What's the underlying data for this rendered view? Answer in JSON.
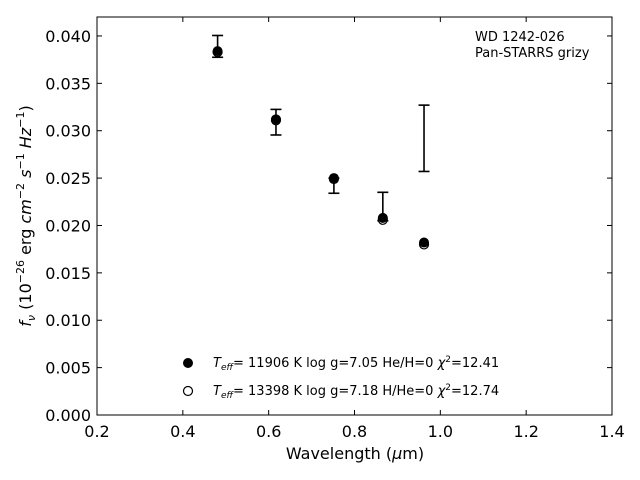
{
  "chart_data": {
    "type": "scatter",
    "title": "",
    "xlabel": "Wavelength (μm)",
    "ylabel": "fν (10⁻²⁶ erg cm⁻² s⁻¹ Hz⁻¹)",
    "xlim": [
      0.2,
      1.4
    ],
    "ylim": [
      0.0,
      0.042
    ],
    "x_ticks": [
      "0.2",
      "0.4",
      "0.6",
      "0.8",
      "1.0",
      "1.2",
      "1.4"
    ],
    "y_ticks": [
      "0.000",
      "0.005",
      "0.010",
      "0.015",
      "0.020",
      "0.025",
      "0.030",
      "0.035",
      "0.040"
    ],
    "annotation": [
      "WD 1242-026",
      "Pan-STARRS grizy"
    ],
    "legend_position": "lower-center",
    "observed": {
      "x": [
        0.481,
        0.617,
        0.752,
        0.866,
        0.962
      ],
      "y": [
        0.0389,
        0.0309,
        0.0242,
        0.022,
        0.0292
      ],
      "yerr": [
        0.00115,
        0.00135,
        0.0008,
        0.0015,
        0.0035
      ]
    },
    "series": [
      {
        "name": "Teff= 11906 K  log g=7.05  He/H=0  χ²=12.41",
        "marker": "filled-circle",
        "x": [
          0.481,
          0.617,
          0.752,
          0.866,
          0.962
        ],
        "y": [
          0.0384,
          0.0312,
          0.025,
          0.0208,
          0.0182
        ]
      },
      {
        "name": "Teff= 13398 K  log g=7.18  H/He=0  χ²=12.74",
        "marker": "open-circle",
        "x": [
          0.481,
          0.617,
          0.752,
          0.866,
          0.962
        ],
        "y": [
          0.0383,
          0.0311,
          0.0249,
          0.0206,
          0.018
        ]
      }
    ]
  }
}
